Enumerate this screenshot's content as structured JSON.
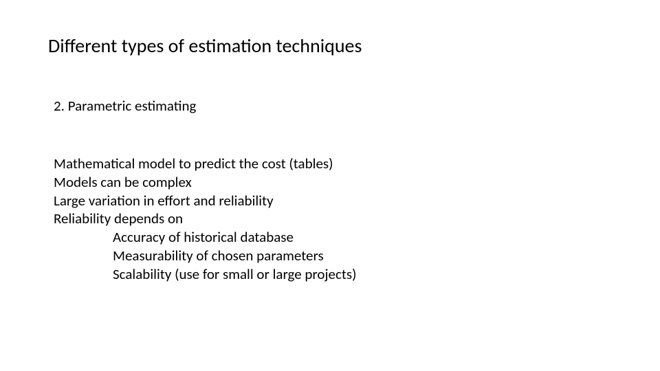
{
  "title": "Different types of estimation techniques",
  "subtitle": "2. Parametric estimating",
  "body": {
    "l1": "Mathematical model to predict the cost (tables)",
    "l2": "Models can be complex",
    "l3": "Large variation in effort and reliability",
    "l4": "Reliability depends on",
    "l5": "Accuracy of historical database",
    "l6": "Measurability of chosen parameters",
    "l7": "Scalability (use for small or large projects)"
  },
  "colors": {
    "background": "#ffffff",
    "text": "#000000"
  },
  "typography": {
    "title_fontsize": 28,
    "subtitle_fontsize": 21,
    "body_fontsize": 21,
    "font_family": "Calibri"
  }
}
